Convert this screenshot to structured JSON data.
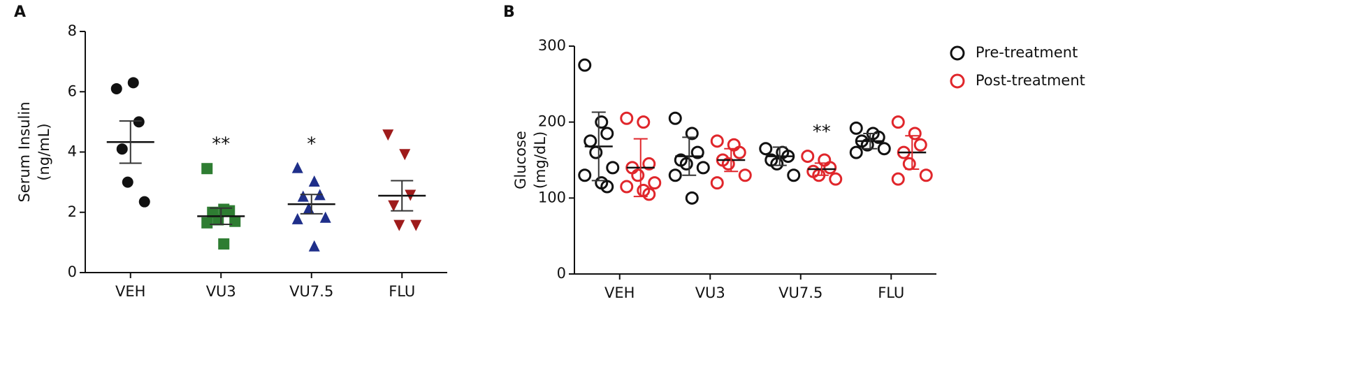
{
  "chart_data": [
    {
      "type": "strip",
      "panel_label": "A",
      "ylabel": [
        "Serum Insulin",
        "(ng/mL)"
      ],
      "categories": [
        "VEH",
        "VU3",
        "VU7.5",
        "FLU"
      ],
      "ylim": [
        0,
        8
      ],
      "yticks": [
        0,
        2,
        4,
        6,
        8
      ],
      "series": [
        {
          "colors": [
            "#111111",
            "#2e7d32",
            "#1f2f8a",
            "#9e1b1b"
          ],
          "markers": [
            "circle",
            "square",
            "triangle",
            "triangle-down"
          ],
          "values": [
            [
              6.1,
              6.3,
              5.0,
              4.1,
              3.0,
              2.35
            ],
            [
              3.45,
              2.1,
              2.05,
              2.0,
              1.75,
              1.7,
              1.65,
              0.95
            ],
            [
              3.45,
              3.0,
              2.55,
              2.5,
              2.1,
              1.8,
              1.75,
              0.85
            ],
            [
              4.6,
              3.95,
              2.6,
              2.25,
              1.6,
              1.6
            ]
          ],
          "means": [
            4.33,
            1.87,
            2.27,
            2.55
          ],
          "errors": [
            0.7,
            0.27,
            0.32,
            0.5
          ],
          "annotations": [
            null,
            "**",
            "*",
            null
          ]
        }
      ]
    },
    {
      "type": "strip",
      "panel_label": "B",
      "ylabel": [
        "Glucose",
        "(mg/dL)"
      ],
      "categories": [
        "VEH",
        "VU3",
        "VU7.5",
        "FLU"
      ],
      "ylim": [
        0,
        300
      ],
      "yticks": [
        0,
        100,
        200,
        300
      ],
      "legend": "top-right",
      "series": [
        {
          "name": "Pre-treatment",
          "color": "#111111",
          "marker": "open-circle",
          "values": [
            [
              275,
              200,
              185,
              175,
              160,
              140,
              130,
              120,
              115
            ],
            [
              205,
              185,
              160,
              150,
              145,
              140,
              130,
              100
            ],
            [
              165,
              160,
              155,
              150,
              145,
              130
            ],
            [
              192,
              185,
              180,
              175,
              170,
              165,
              160
            ]
          ],
          "means": [
            168,
            155,
            155,
            175
          ],
          "errors": [
            45,
            25,
            12,
            10
          ],
          "annotations": [
            null,
            null,
            null,
            null
          ]
        },
        {
          "name": "Post-treatment",
          "color": "#e0262b",
          "marker": "open-circle",
          "values": [
            [
              205,
              200,
              145,
              140,
              130,
              120,
              115,
              110,
              105
            ],
            [
              175,
              170,
              160,
              150,
              145,
              130,
              120
            ],
            [
              155,
              150,
              140,
              135,
              130,
              125
            ],
            [
              200,
              185,
              170,
              160,
              145,
              130,
              125
            ]
          ],
          "means": [
            140,
            150,
            138,
            160
          ],
          "errors": [
            38,
            15,
            8,
            22
          ],
          "annotations": [
            null,
            null,
            "**",
            null
          ]
        }
      ]
    }
  ]
}
